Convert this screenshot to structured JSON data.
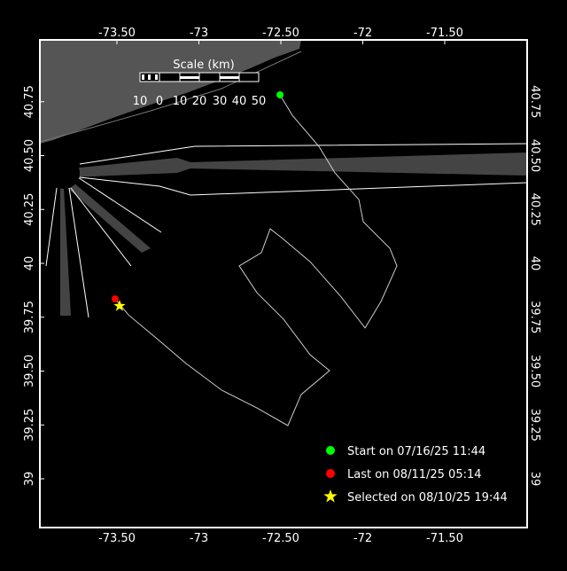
{
  "map": {
    "lon_ticks": [
      "-73.50",
      "-73",
      "-72.50",
      "-72",
      "-71.50"
    ],
    "lon_values": [
      -73.5,
      -73,
      -72.5,
      -72,
      -71.5
    ],
    "lat_ticks": [
      "40.75",
      "40.50",
      "40.25",
      "40",
      "39.75",
      "39.50",
      "39.25",
      "39"
    ],
    "lat_values": [
      40.75,
      40.5,
      40.25,
      40,
      39.75,
      39.5,
      39.25,
      39
    ],
    "colors": {
      "background": "#000000",
      "land": "#555555",
      "track": "#cccccc",
      "start": "#00ff00",
      "last": "#ff0000",
      "selected": "#ffff00"
    }
  },
  "scale": {
    "title": "Scale (km)",
    "labels": [
      "10",
      "0",
      "10",
      "20",
      "30",
      "40",
      "50"
    ]
  },
  "legend": {
    "start": "Start on 07/16/25 11:44",
    "last": "Last on 08/11/25 05:14",
    "selected": "Selected on 08/10/25 19:44"
  },
  "chart_data": {
    "type": "line",
    "track": [
      [
        -72.505,
        40.782
      ],
      [
        -72.43,
        40.687
      ],
      [
        -72.268,
        40.543
      ],
      [
        -72.17,
        40.42
      ],
      [
        -72.024,
        40.296
      ],
      [
        -71.997,
        40.193
      ],
      [
        -71.835,
        40.07
      ],
      [
        -71.792,
        39.988
      ],
      [
        -71.889,
        39.823
      ],
      [
        -71.986,
        39.7
      ],
      [
        -72.132,
        39.844
      ],
      [
        -72.322,
        40.008
      ],
      [
        -72.495,
        40.119
      ],
      [
        -72.565,
        40.16
      ],
      [
        -72.619,
        40.049
      ],
      [
        -72.754,
        39.988
      ],
      [
        -72.646,
        39.864
      ],
      [
        -72.484,
        39.741
      ],
      [
        -72.322,
        39.576
      ],
      [
        -72.203,
        39.502
      ],
      [
        -72.376,
        39.391
      ],
      [
        -72.457,
        39.247
      ],
      [
        -72.646,
        39.329
      ],
      [
        -72.862,
        39.412
      ],
      [
        -73.078,
        39.535
      ],
      [
        -73.268,
        39.658
      ],
      [
        -73.43,
        39.761
      ],
      [
        -73.511,
        39.835
      ]
    ],
    "start": [
      -72.505,
      40.782
    ],
    "last": [
      -73.511,
      39.835
    ],
    "selected": [
      -73.484,
      39.802
    ]
  }
}
